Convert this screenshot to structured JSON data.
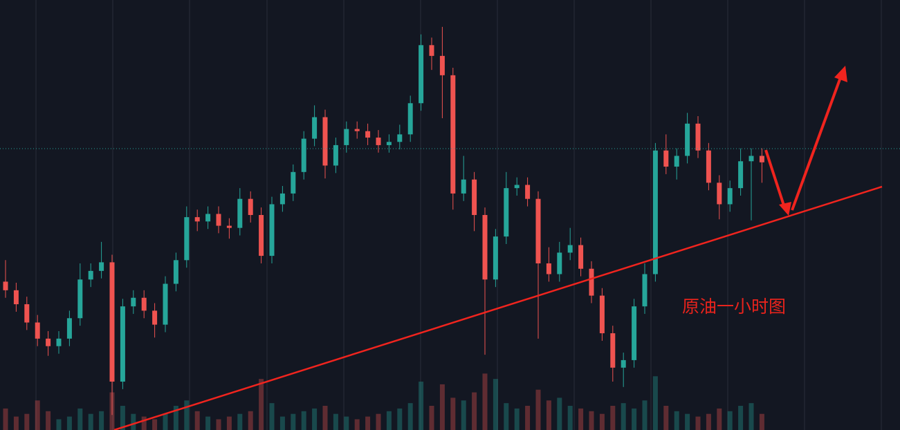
{
  "chart_data": {
    "type": "candlestick",
    "annotation": "原油一小时图",
    "up_color": "#26a69a",
    "down_color": "#ef5350",
    "ylim": [
      60,
      100
    ],
    "y2lim": [
      0,
      800
    ],
    "open": [
      73.8,
      73.0,
      71.7,
      70.0,
      68.5,
      67.8,
      68.5,
      70.4,
      74.0,
      74.8,
      75.6,
      64.5,
      71.5,
      72.3,
      71.1,
      69.8,
      73.6,
      75.8,
      79.8,
      79.4,
      80.1,
      79.0,
      78.8,
      81.5,
      80.0,
      76.2,
      81.0,
      82.0,
      84.0,
      87.1,
      89.1,
      84.6,
      86.5,
      88.0,
      87.8,
      87.2,
      86.5,
      86.8,
      87.5,
      90.4,
      95.8,
      94.8,
      93.0,
      82.0,
      83.3,
      80.0,
      74.0,
      78.0,
      82.5,
      82.8,
      81.5,
      75.5,
      74.5,
      76.5,
      77.2,
      75.0,
      72.5,
      69.0,
      65.8,
      66.5,
      71.5,
      74.5,
      86.0,
      84.5,
      85.5,
      88.5,
      86.0,
      83.0,
      81.0,
      82.5,
      85.0,
      85.5
    ],
    "high": [
      75.8,
      73.7,
      72.4,
      70.7,
      69.2,
      69.2,
      71.1,
      75.5,
      75.5,
      77.5,
      76.3,
      72.2,
      73.0,
      73.0,
      71.8,
      74.3,
      76.5,
      80.8,
      80.5,
      80.8,
      80.8,
      79.7,
      82.5,
      82.2,
      80.7,
      81.7,
      82.7,
      84.7,
      87.8,
      90.2,
      89.8,
      87.2,
      88.7,
      88.7,
      88.5,
      87.9,
      87.5,
      88.4,
      91.1,
      96.8,
      96.5,
      97.5,
      93.7,
      85.5,
      84.0,
      80.7,
      78.7,
      84.0,
      83.5,
      83.5,
      82.2,
      77.0,
      77.5,
      78.8,
      77.9,
      75.7,
      73.2,
      69.7,
      67.2,
      72.2,
      75.5,
      86.7,
      87.5,
      86.2,
      89.5,
      89.2,
      86.7,
      83.7,
      83.2,
      86.2,
      86.2,
      86.2
    ],
    "low": [
      72.3,
      71.0,
      69.3,
      67.8,
      66.9,
      67.1,
      67.8,
      69.7,
      73.3,
      74.1,
      61.4,
      63.8,
      70.8,
      70.4,
      68.6,
      69.1,
      72.9,
      75.1,
      78.5,
      78.7,
      78.3,
      77.8,
      78.1,
      79.3,
      75.5,
      75.5,
      80.3,
      81.3,
      83.3,
      86.4,
      83.4,
      83.9,
      85.8,
      87.1,
      86.5,
      85.8,
      85.8,
      86.1,
      86.8,
      89.7,
      93.5,
      89.0,
      80.5,
      81.3,
      78.5,
      67.0,
      73.3,
      77.3,
      81.8,
      80.8,
      68.5,
      73.8,
      73.8,
      75.8,
      74.3,
      71.8,
      68.3,
      64.5,
      64.0,
      65.8,
      70.8,
      73.8,
      83.8,
      83.3,
      84.8,
      85.3,
      82.3,
      79.6,
      80.3,
      81.8,
      79.5,
      83.0
    ],
    "close": [
      73.0,
      71.7,
      70.0,
      68.5,
      67.8,
      68.5,
      70.4,
      74.0,
      74.8,
      75.6,
      64.5,
      71.5,
      72.3,
      71.1,
      69.8,
      73.6,
      75.8,
      79.8,
      79.4,
      80.1,
      79.0,
      78.8,
      81.5,
      80.0,
      76.2,
      81.0,
      82.0,
      84.0,
      87.1,
      89.1,
      84.6,
      86.5,
      88.0,
      87.8,
      87.2,
      86.5,
      86.8,
      87.5,
      90.4,
      95.8,
      94.8,
      93.0,
      82.0,
      83.3,
      80.0,
      74.0,
      78.0,
      82.5,
      82.8,
      81.5,
      75.5,
      74.5,
      76.5,
      77.2,
      75.0,
      72.5,
      69.0,
      65.8,
      66.5,
      71.5,
      74.5,
      86.0,
      84.5,
      85.5,
      88.5,
      86.0,
      83.0,
      81.0,
      82.5,
      85.0,
      85.5,
      84.9
    ],
    "volume": [
      40,
      25,
      30,
      55,
      35,
      20,
      25,
      40,
      30,
      35,
      70,
      45,
      30,
      25,
      20,
      30,
      45,
      55,
      35,
      25,
      20,
      25,
      30,
      35,
      95,
      50,
      25,
      30,
      35,
      40,
      45,
      30,
      25,
      20,
      25,
      30,
      35,
      40,
      50,
      90,
      45,
      85,
      60,
      55,
      70,
      105,
      95,
      50,
      40,
      45,
      75,
      55,
      60,
      45,
      40,
      35,
      30,
      45,
      50,
      40,
      55,
      100,
      45,
      35,
      30,
      25,
      30,
      40,
      35,
      45,
      50,
      30
    ]
  }
}
